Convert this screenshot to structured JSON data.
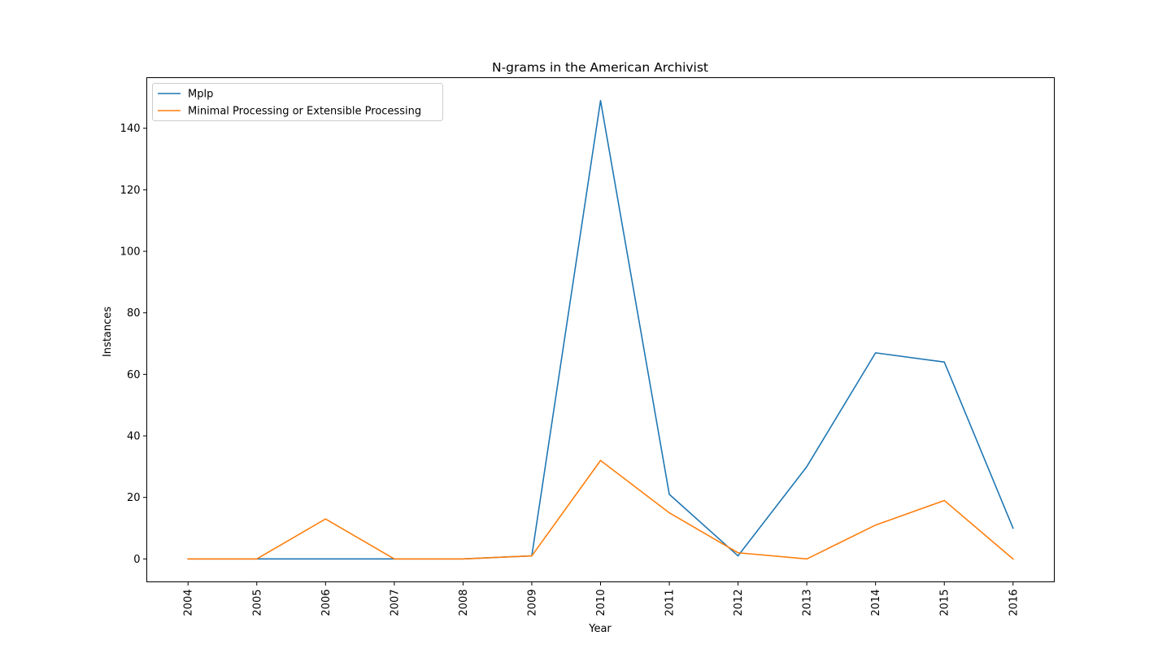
{
  "chart_data": {
    "type": "line",
    "title": "N-grams in the American Archivist",
    "xlabel": "Year",
    "ylabel": "Instances",
    "x": [
      "2004",
      "2005",
      "2006",
      "2007",
      "2008",
      "2009",
      "2010",
      "2011",
      "2012",
      "2013",
      "2014",
      "2015",
      "2016"
    ],
    "series": [
      {
        "name": "Mplp",
        "color": "#1f77b4",
        "values": [
          0,
          0,
          0,
          0,
          0,
          1,
          149,
          21,
          1,
          30,
          67,
          64,
          10
        ]
      },
      {
        "name": "Minimal Processing or Extensible Processing",
        "color": "#ff7f0e",
        "values": [
          0,
          0,
          13,
          0,
          0,
          1,
          32,
          15,
          2,
          0,
          11,
          19,
          0
        ]
      }
    ],
    "ylim": [
      -7.45,
      156.45
    ],
    "yticks": [
      0,
      20,
      40,
      60,
      80,
      100,
      120,
      140
    ],
    "grid": false,
    "legend": "top-left"
  }
}
